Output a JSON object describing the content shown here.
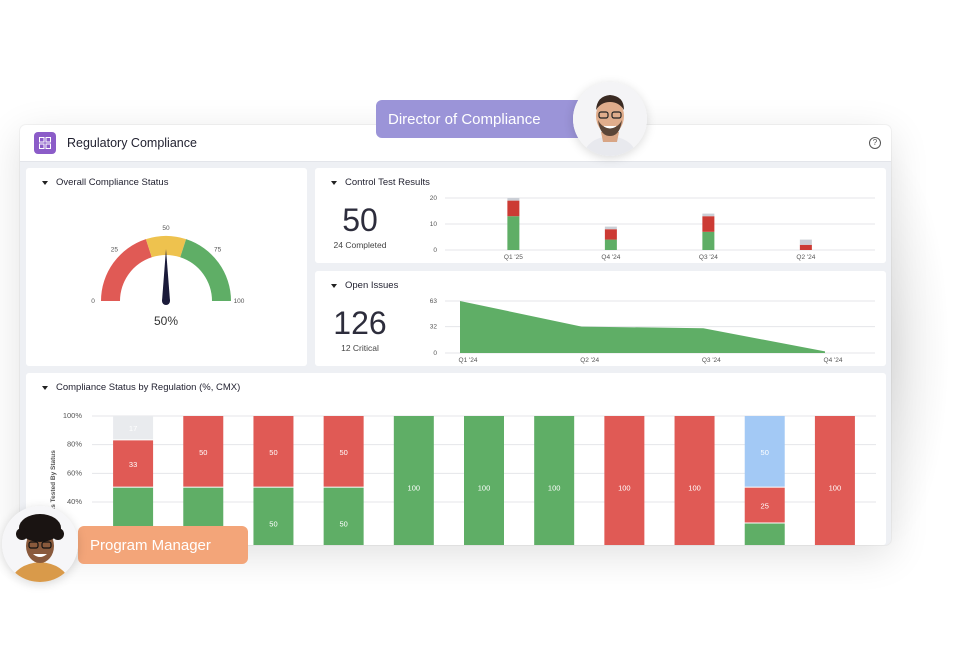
{
  "header": {
    "title": "Regulatory Compliance",
    "help_icon": "help-circle-icon",
    "app_icon": "dashboard-grid-icon"
  },
  "personas": {
    "director": "Director of Compliance",
    "manager": "Program Manager"
  },
  "overall": {
    "title": "Overall Compliance Status",
    "value_label": "50%",
    "value": 50,
    "ticks": [
      "0",
      "25",
      "50",
      "75",
      "100"
    ],
    "colors": {
      "low": "#e05a55",
      "mid": "#eec24e",
      "high": "#5fae66",
      "needle": "#1b1b3a"
    }
  },
  "control_tests": {
    "title": "Control Test Results",
    "big": "50",
    "sub": "24 Completed",
    "chart_data": {
      "type": "bar",
      "stacked": true,
      "categories": [
        "Q1 '25",
        "Q4 '24",
        "Q3 '24",
        "Q2 '24"
      ],
      "yticks": [
        "20",
        "10",
        "0"
      ],
      "ylim": [
        0,
        20
      ],
      "series": [
        {
          "color": "#5fae66",
          "values": [
            13,
            4,
            7,
            0
          ]
        },
        {
          "color": "#cc3b34",
          "values": [
            6,
            4,
            6,
            2
          ]
        },
        {
          "color": "#cbcfd6",
          "values": [
            1,
            1,
            1,
            2
          ]
        }
      ]
    }
  },
  "open_issues": {
    "title": "Open Issues",
    "big": "126",
    "sub": "12 Critical",
    "chart_data": {
      "type": "area",
      "categories": [
        "Q1 '24",
        "Q2 '24",
        "Q3 '24",
        "Q4 '24"
      ],
      "values": [
        63,
        32,
        30,
        2
      ],
      "yticks": [
        "63",
        "32",
        "0"
      ],
      "ylim": [
        0,
        63
      ],
      "color": "#5fae66"
    }
  },
  "regulation": {
    "title": "Compliance Status by Regulation (%, CMX)",
    "ylabel": "Controls Tested By Status",
    "chart_data": {
      "type": "bar",
      "stacked": true,
      "yticks": [
        "100%",
        "80%",
        "60%",
        "40%"
      ],
      "ylim": [
        0,
        100
      ],
      "bars": [
        {
          "segments": [
            {
              "v": 17,
              "c": "#e9ebee",
              "label": "17"
            },
            {
              "v": 33,
              "c": "#e05a55",
              "label": "33"
            },
            {
              "v": 50,
              "c": "#5fae66",
              "label": ""
            }
          ]
        },
        {
          "segments": [
            {
              "v": 50,
              "c": "#e05a55",
              "label": "50"
            },
            {
              "v": 50,
              "c": "#5fae66",
              "label": ""
            }
          ]
        },
        {
          "segments": [
            {
              "v": 50,
              "c": "#e05a55",
              "label": "50"
            },
            {
              "v": 50,
              "c": "#5fae66",
              "label": "50"
            }
          ]
        },
        {
          "segments": [
            {
              "v": 50,
              "c": "#e05a55",
              "label": "50"
            },
            {
              "v": 50,
              "c": "#5fae66",
              "label": "50"
            }
          ]
        },
        {
          "segments": [
            {
              "v": 100,
              "c": "#5fae66",
              "label": "100"
            }
          ]
        },
        {
          "segments": [
            {
              "v": 100,
              "c": "#5fae66",
              "label": "100"
            }
          ]
        },
        {
          "segments": [
            {
              "v": 100,
              "c": "#5fae66",
              "label": "100"
            }
          ]
        },
        {
          "segments": [
            {
              "v": 100,
              "c": "#e05a55",
              "label": "100"
            }
          ]
        },
        {
          "segments": [
            {
              "v": 100,
              "c": "#e05a55",
              "label": "100"
            }
          ]
        },
        {
          "segments": [
            {
              "v": 50,
              "c": "#a3c9f5",
              "label": "50"
            },
            {
              "v": 25,
              "c": "#e05a55",
              "label": "25"
            },
            {
              "v": 25,
              "c": "#5fae66",
              "label": ""
            }
          ]
        },
        {
          "segments": [
            {
              "v": 100,
              "c": "#e05a55",
              "label": "100"
            }
          ]
        }
      ]
    }
  }
}
